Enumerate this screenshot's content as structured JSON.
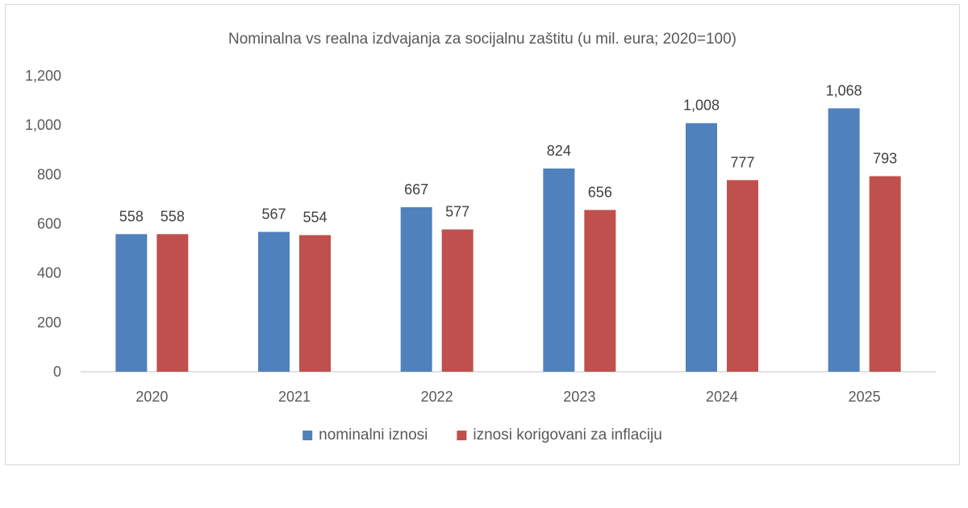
{
  "chart_data": {
    "type": "bar",
    "title": "Nominalna vs realna izdvajanja za socijalnu zaštitu (u mil. eura; 2020=100)",
    "categories": [
      "2020",
      "2021",
      "2022",
      "2023",
      "2024",
      "2025"
    ],
    "series": [
      {
        "name": "nominalni iznosi",
        "color": "#4f81bd",
        "values": [
          558,
          567,
          667,
          824,
          1008,
          1068
        ],
        "labels": [
          "558",
          "567",
          "667",
          "824",
          "1,008",
          "1,068"
        ]
      },
      {
        "name": "iznosi korigovani za inflaciju",
        "color": "#c0504d",
        "values": [
          558,
          554,
          577,
          656,
          777,
          793
        ],
        "labels": [
          "558",
          "554",
          "577",
          "656",
          "777",
          "793"
        ]
      }
    ],
    "ylim": [
      0,
      1200
    ],
    "yticks": [
      "0",
      "200",
      "400",
      "600",
      "800",
      "1,000",
      "1,200"
    ],
    "ytick_values": [
      0,
      200,
      400,
      600,
      800,
      1000,
      1200
    ],
    "grid": false,
    "legend_position": "bottom",
    "xlabel": "",
    "ylabel": ""
  }
}
